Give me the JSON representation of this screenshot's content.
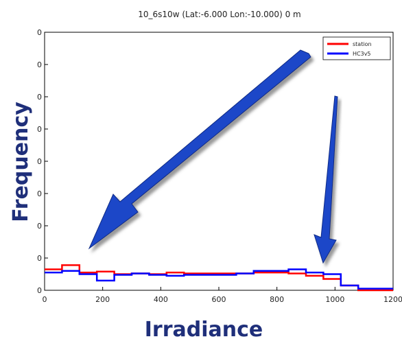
{
  "chart_data": {
    "type": "line",
    "title": "10_6s10w (Lat:-6.000 Lon:-10.000) 0 m",
    "xlabel": "Irradiance",
    "ylabel": "Frequency",
    "xlim": [
      0,
      1200
    ],
    "ylim": [
      0,
      8
    ],
    "x_ticks": [
      "0",
      "200",
      "400",
      "600",
      "800",
      "1000",
      "1200"
    ],
    "y_ticks": [
      "0",
      "0",
      "0",
      "0",
      "0",
      "0",
      "0",
      "0",
      "0",
      "0"
    ],
    "grid": false,
    "legend_position": "top-right",
    "bin_edges": [
      0,
      60,
      120,
      180,
      240,
      300,
      360,
      420,
      480,
      540,
      600,
      660,
      720,
      780,
      840,
      900,
      960,
      1020,
      1080,
      1140,
      1200
    ],
    "series": [
      {
        "name": "station",
        "color": "#ff0000",
        "values": [
          0.65,
          0.78,
          0.55,
          0.58,
          0.5,
          0.52,
          0.5,
          0.55,
          0.52,
          0.52,
          0.52,
          0.52,
          0.55,
          0.55,
          0.52,
          0.45,
          0.35,
          0.15,
          0.0,
          0.0
        ]
      },
      {
        "name": "HC3v5",
        "color": "#0000ff",
        "values": [
          0.55,
          0.6,
          0.5,
          0.3,
          0.48,
          0.52,
          0.48,
          0.45,
          0.48,
          0.48,
          0.48,
          0.52,
          0.6,
          0.6,
          0.65,
          0.55,
          0.5,
          0.15,
          0.05,
          0.05
        ]
      }
    ],
    "annotations": [
      "arrow-to-low-irradiance",
      "arrow-to-high-irradiance"
    ]
  }
}
